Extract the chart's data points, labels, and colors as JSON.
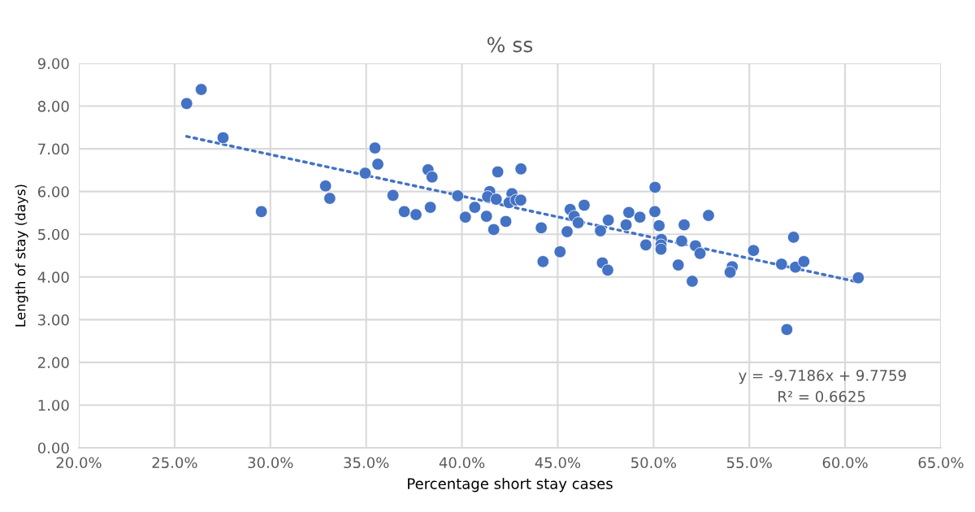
{
  "chart_data": {
    "type": "scatter",
    "title": "% ss",
    "xlabel": "Percentage short stay cases",
    "ylabel": "Length of stay (days)",
    "xlim": [
      20,
      65
    ],
    "xticks": [
      {
        "value": 20,
        "label": "20.0%"
      },
      {
        "value": 25,
        "label": "25.0%"
      },
      {
        "value": 30,
        "label": "30.0%"
      },
      {
        "value": 35,
        "label": "35.0%"
      },
      {
        "value": 40,
        "label": "40.0%"
      },
      {
        "value": 45,
        "label": "45.0%"
      },
      {
        "value": 50,
        "label": "50.0%"
      },
      {
        "value": 55,
        "label": "55.0%"
      },
      {
        "value": 60,
        "label": "60.0%"
      },
      {
        "value": 65,
        "label": "65.0%"
      }
    ],
    "ylim": [
      0,
      9
    ],
    "yticks": [
      {
        "value": 0,
        "label": "0.00"
      },
      {
        "value": 1,
        "label": "1.00"
      },
      {
        "value": 2,
        "label": "2.00"
      },
      {
        "value": 3,
        "label": "3.00"
      },
      {
        "value": 4,
        "label": "4.00"
      },
      {
        "value": 5,
        "label": "5.00"
      },
      {
        "value": 6,
        "label": "6.00"
      },
      {
        "value": 7,
        "label": "7.00"
      },
      {
        "value": 8,
        "label": "8.00"
      },
      {
        "value": 9,
        "label": "9.00"
      }
    ],
    "grid": true,
    "marker": "circle",
    "series": [
      {
        "color": "#4472c4",
        "x": [
          25.63,
          26.39,
          27.53,
          29.53,
          32.88,
          33.1,
          34.95,
          35.46,
          35.61,
          36.4,
          36.99,
          37.6,
          38.23,
          38.44,
          38.35,
          39.78,
          40.18,
          40.67,
          41.28,
          41.45,
          41.34,
          41.79,
          41.66,
          41.87,
          42.29,
          42.61,
          42.46,
          42.82,
          43.07,
          43.08,
          44.14,
          44.23,
          45.12,
          45.49,
          45.65,
          45.86,
          46.07,
          46.38,
          47.23,
          47.33,
          47.61,
          47.64,
          48.57,
          48.71,
          49.29,
          49.6,
          50.08,
          50.07,
          50.29,
          50.41,
          50.39,
          50.39,
          51.6,
          52.87,
          51.47,
          51.29,
          52.19,
          52.43,
          52.02,
          54.11,
          54.0,
          55.22,
          56.68,
          57.31,
          57.41,
          57.85,
          60.69,
          56.96
        ],
        "values": [
          8.06,
          8.39,
          7.26,
          5.53,
          6.13,
          5.84,
          6.43,
          7.02,
          6.64,
          5.91,
          5.53,
          5.46,
          6.51,
          6.34,
          5.63,
          5.9,
          5.4,
          5.63,
          5.42,
          6.0,
          5.88,
          5.82,
          5.11,
          6.46,
          5.3,
          5.95,
          5.74,
          5.8,
          5.8,
          6.53,
          5.15,
          4.36,
          4.59,
          5.06,
          5.58,
          5.42,
          5.27,
          5.68,
          5.08,
          4.33,
          4.16,
          5.33,
          5.22,
          5.51,
          5.4,
          4.75,
          6.1,
          5.53,
          5.2,
          4.88,
          4.75,
          4.65,
          5.22,
          5.44,
          4.84,
          4.28,
          4.73,
          4.55,
          3.9,
          4.24,
          4.11,
          4.62,
          4.3,
          4.93,
          4.23,
          4.36,
          3.98,
          2.77
        ]
      },
      {
        "type": "line",
        "color": "#4472c4",
        "line_style": "dotted",
        "marker": "none",
        "x": [
          25.63,
          60.69
        ],
        "values": [
          7.29,
          3.88
        ]
      }
    ],
    "annotations": [
      "y = -9.7186x + 9.7759",
      "R² = 0.6625"
    ]
  }
}
